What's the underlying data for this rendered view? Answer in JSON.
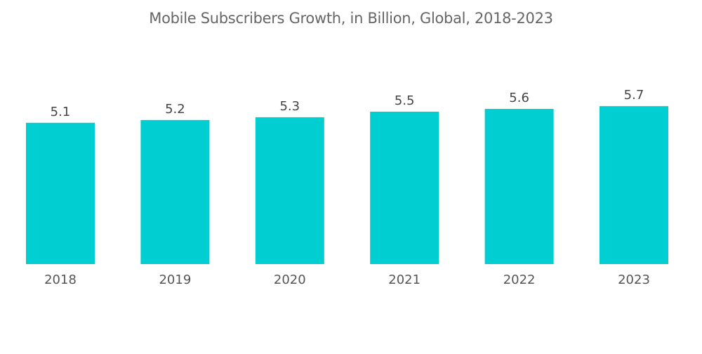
{
  "chart_data": {
    "type": "bar",
    "title": "Mobile Subscribers Growth, in Billion, Global, 2018-2023",
    "categories": [
      "2018",
      "2019",
      "2020",
      "2021",
      "2022",
      "2023"
    ],
    "values": [
      5.1,
      5.2,
      5.3,
      5.5,
      5.6,
      5.7
    ],
    "data_labels": [
      "5.1",
      "5.2",
      "5.3",
      "5.5",
      "5.6",
      "5.7"
    ],
    "xlabel": "",
    "ylabel": "",
    "ylim": [
      0,
      5.7
    ],
    "grid": false,
    "legend": "none",
    "bar_color": "#00CED1"
  }
}
